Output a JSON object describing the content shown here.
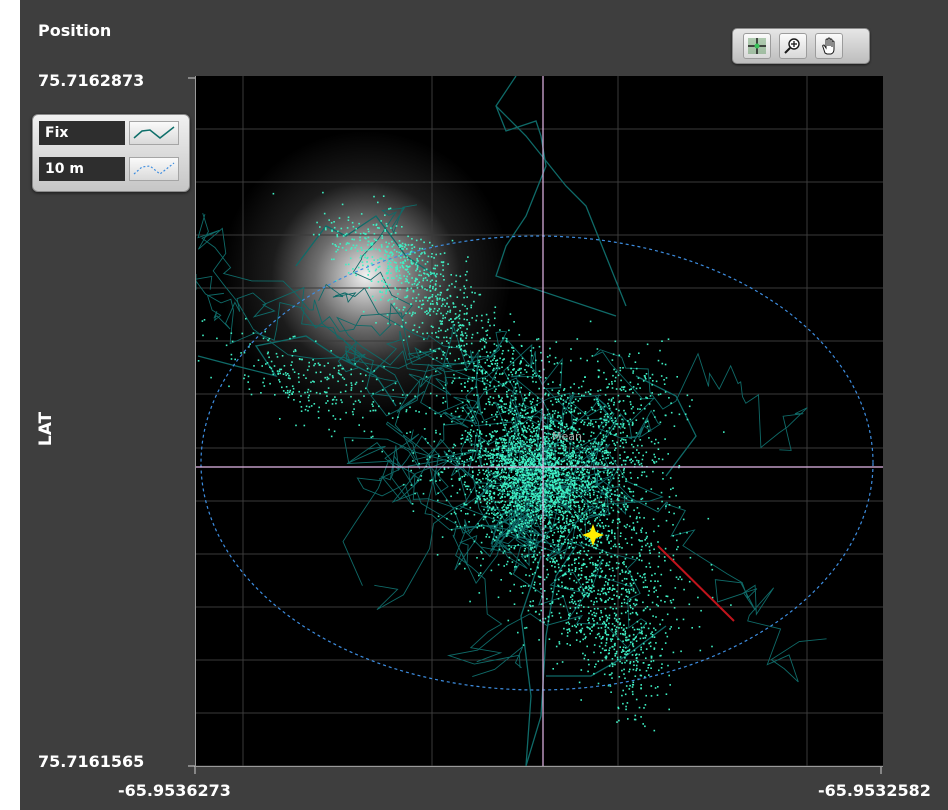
{
  "graph": {
    "title": "Position",
    "y_axis_label": "LAT",
    "y_max": "75.7162873",
    "y_min": "75.7161565",
    "x_min": "-65.9536273",
    "x_max": "-65.9532582",
    "cursor_label": "Mean"
  },
  "legend": {
    "items": [
      {
        "label": "Fix",
        "icon": "line-plot-icon",
        "color": "#0e6f6a"
      },
      {
        "label": "10 m",
        "icon": "dashed-line-plot-icon",
        "color": "#3d8de0"
      }
    ]
  },
  "toolbar": {
    "buttons": [
      {
        "icon": "cursor-move-icon"
      },
      {
        "icon": "zoom-icon"
      },
      {
        "icon": "pan-hand-icon"
      }
    ]
  },
  "colors": {
    "points": "#3ff0c4",
    "track": "#0f6a68",
    "circle": "#3d8de0",
    "cursor": "#e4b8e8",
    "current_position": "#ffee00",
    "heading": "#c0141c"
  }
}
